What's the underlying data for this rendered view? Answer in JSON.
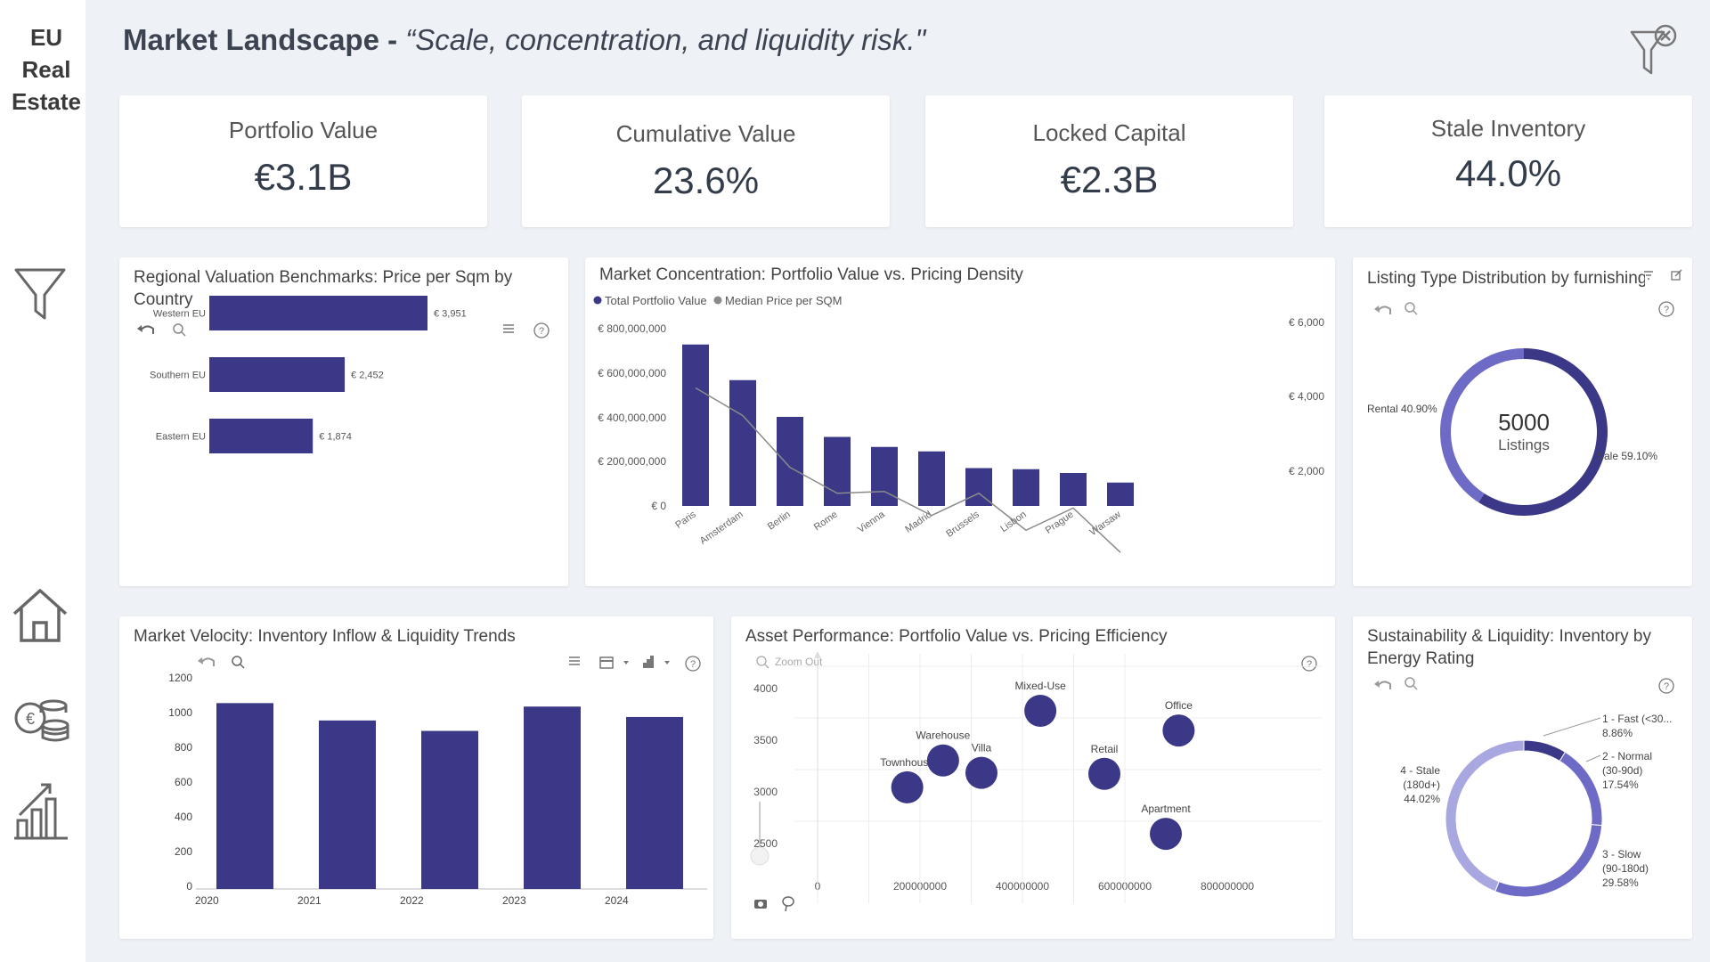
{
  "app": {
    "brand_lines": [
      "EU",
      "Real",
      "Estate"
    ]
  },
  "header": {
    "title_bold": "Market Landscape - ",
    "title_italic": "“Scale, concentration, and liquidity risk.\""
  },
  "icons": {
    "nav": [
      "funnel-icon",
      "home-icon",
      "coins-icon",
      "bar-growth-icon"
    ],
    "clear_filter": "filter-clear-icon"
  },
  "kpis": [
    {
      "label": "Portfolio Value",
      "value": "€3.1B"
    },
    {
      "label": "Cumulative Value",
      "value": "23.6%"
    },
    {
      "label": "Locked Capital",
      "value": "€2.3B"
    },
    {
      "label": "Stale Inventory",
      "value": "44.0%"
    }
  ],
  "colors": {
    "primary": "#3b3987",
    "mid": "#6e6bc7",
    "light": "#a9a7df",
    "line": "#8a8a8a"
  },
  "chart_data": [
    {
      "type": "bar",
      "orientation": "horizontal",
      "title_lines": [
        "Regional Valuation Benchmarks: Price per Sqm by",
        "Country"
      ],
      "categories": [
        "Western EU",
        "Southern EU",
        "Eastern EU"
      ],
      "values": [
        3951,
        2452,
        1874
      ],
      "labels": [
        "€ 3,951",
        "€ 2,452",
        "€ 1,874"
      ]
    },
    {
      "type": "bar",
      "title": "Market Concentration: Portfolio Value vs. Pricing Density",
      "legend": [
        "Total Portfolio Value",
        "Median Price per SQM"
      ],
      "categories": [
        "Paris",
        "Amsterdam",
        "Berlin",
        "Rome",
        "Vienna",
        "Madrid",
        "Brussels",
        "Lisbon",
        "Prague",
        "Warsaw"
      ],
      "series": [
        {
          "name": "Total Portfolio Value",
          "type": "bar",
          "values": [
            725000000,
            565000000,
            400000000,
            310000000,
            265000000,
            245000000,
            170000000,
            165000000,
            148000000,
            105000000
          ]
        },
        {
          "name": "Median Price per SQM",
          "type": "line",
          "values": [
            5000,
            4250,
            2850,
            2150,
            2200,
            1550,
            2150,
            1150,
            1750,
            550
          ]
        }
      ],
      "y_ticks": [
        "€ 800,000,000",
        "€ 600,000,000",
        "€ 400,000,000",
        "€ 200,000,000",
        "€ 0"
      ],
      "y2_ticks": [
        "€ 6,000",
        "€ 4,000",
        "€ 2,000"
      ],
      "ylim": [
        0,
        800000000
      ]
    },
    {
      "type": "pie",
      "title": "Listing Type Distribution by furnishing",
      "center_value": "5000",
      "center_label": "Listings",
      "slices": [
        {
          "label": "Sale 59.10%",
          "value": 59.1
        },
        {
          "label": "Rental 40.90%",
          "value": 40.9
        }
      ]
    },
    {
      "type": "bar",
      "title": "Market Velocity: Inventory Inflow & Liquidity Trends",
      "categories": [
        "2020",
        "2021",
        "2022",
        "2023",
        "2024"
      ],
      "values": [
        1070,
        970,
        910,
        1050,
        990
      ],
      "y_ticks": [
        "1200",
        "1000",
        "800",
        "600",
        "400",
        "200",
        "0"
      ],
      "ylim": [
        0,
        1200
      ]
    },
    {
      "type": "scatter",
      "title": "Asset Performance: Portfolio Value vs. Pricing Efficiency",
      "zoom_label": "Zoom Out",
      "points": [
        {
          "label": "Townhouse",
          "x": 175000000,
          "y": 2820
        },
        {
          "label": "Warehouse",
          "x": 245000000,
          "y": 3080
        },
        {
          "label": "Villa",
          "x": 320000000,
          "y": 2960
        },
        {
          "label": "Mixed-Use",
          "x": 435000000,
          "y": 3560
        },
        {
          "label": "Retail",
          "x": 560000000,
          "y": 2950
        },
        {
          "label": "Office",
          "x": 705000000,
          "y": 3370
        },
        {
          "label": "Apartment",
          "x": 680000000,
          "y": 2370
        }
      ],
      "x_ticks": [
        "0",
        "200000000",
        "400000000",
        "600000000",
        "800000000"
      ],
      "y_ticks": [
        "4000",
        "3500",
        "3000",
        "2500"
      ]
    },
    {
      "type": "pie",
      "title_lines": [
        "Sustainability & Liquidity: Inventory by",
        "Energy Rating"
      ],
      "slices": [
        {
          "label_lines": [
            "1 - Fast (<30...",
            "8.86%"
          ],
          "value": 8.86
        },
        {
          "label_lines": [
            "2 - Normal",
            "(30-90d)",
            "17.54%"
          ],
          "value": 17.54
        },
        {
          "label_lines": [
            "3 - Slow",
            "(90-180d)",
            "29.58%"
          ],
          "value": 29.58
        },
        {
          "label_lines": [
            "4 - Stale",
            "(180d+)",
            "44.02%"
          ],
          "value": 44.02
        }
      ]
    }
  ]
}
